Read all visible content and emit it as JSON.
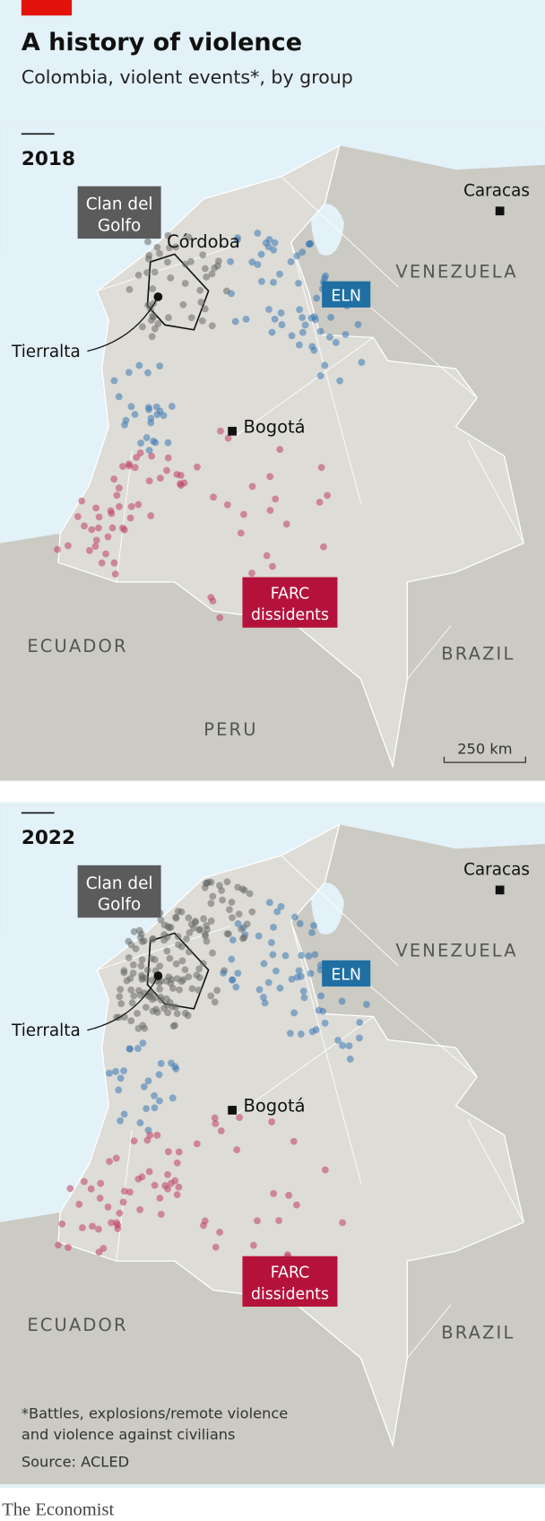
{
  "header": {
    "title": "A history of violence",
    "subtitle": "Colombia, violent events*, by group"
  },
  "maps": [
    {
      "year": "2018",
      "clan": [
        "Clan del",
        "Golfo"
      ],
      "cordoba": "Córdoba",
      "tierralta": "Tierralta",
      "eln": "ELN",
      "caracas": "Caracas",
      "venezuela": "VENEZUELA",
      "bogota": "Bogotá",
      "farc": [
        "FARC",
        "dissidents"
      ],
      "ecuador": "ECUADOR",
      "brazil": "BRAZIL",
      "peru": "PERU",
      "scale": "250 km"
    },
    {
      "year": "2022",
      "clan": [
        "Clan del",
        "Golfo"
      ],
      "tierralta": "Tierralta",
      "eln": "ELN",
      "caracas": "Caracas",
      "venezuela": "VENEZUELA",
      "bogota": "Bogotá",
      "farc": [
        "FARC",
        "dissidents"
      ],
      "ecuador": "ECUADOR",
      "brazil": "BRAZIL"
    }
  ],
  "footnote": [
    "*Battles, explosions/remote violence",
    "and violence against civilians"
  ],
  "source": "Source: ACLED",
  "brand": "The Economist"
}
